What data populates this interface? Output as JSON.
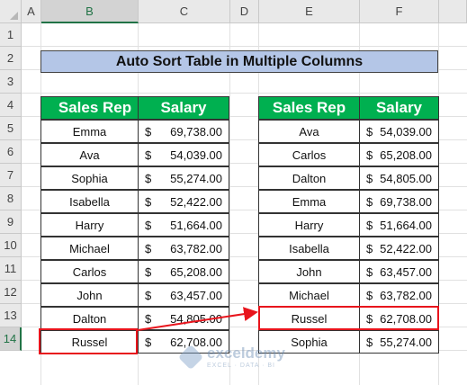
{
  "columns": [
    "A",
    "B",
    "C",
    "D",
    "E",
    "F"
  ],
  "rows": [
    "1",
    "2",
    "3",
    "4",
    "5",
    "6",
    "7",
    "8",
    "9",
    "10",
    "11",
    "12",
    "13",
    "14"
  ],
  "title": "Auto Sort Table in Multiple Columns",
  "left_table": {
    "header_name": "Sales Rep",
    "header_salary": "Salary",
    "rows": [
      {
        "name": "Emma",
        "cur": "$",
        "salary": "69,738.00"
      },
      {
        "name": "Ava",
        "cur": "$",
        "salary": "54,039.00"
      },
      {
        "name": "Sophia",
        "cur": "$",
        "salary": "55,274.00"
      },
      {
        "name": "Isabella",
        "cur": "$",
        "salary": "52,422.00"
      },
      {
        "name": "Harry",
        "cur": "$",
        "salary": "51,664.00"
      },
      {
        "name": "Michael",
        "cur": "$",
        "salary": "63,782.00"
      },
      {
        "name": "Carlos",
        "cur": "$",
        "salary": "65,208.00"
      },
      {
        "name": "John",
        "cur": "$",
        "salary": "63,457.00"
      },
      {
        "name": "Dalton",
        "cur": "$",
        "salary": "54,805.00"
      },
      {
        "name": "Russel",
        "cur": "$",
        "salary": "62,708.00"
      }
    ]
  },
  "right_table": {
    "header_name": "Sales Rep",
    "header_salary": "Salary",
    "rows": [
      {
        "name": "Ava",
        "cur": "$",
        "salary": "54,039.00"
      },
      {
        "name": "Carlos",
        "cur": "$",
        "salary": "65,208.00"
      },
      {
        "name": "Dalton",
        "cur": "$",
        "salary": "54,805.00"
      },
      {
        "name": "Emma",
        "cur": "$",
        "salary": "69,738.00"
      },
      {
        "name": "Harry",
        "cur": "$",
        "salary": "51,664.00"
      },
      {
        "name": "Isabella",
        "cur": "$",
        "salary": "52,422.00"
      },
      {
        "name": "John",
        "cur": "$",
        "salary": "63,457.00"
      },
      {
        "name": "Michael",
        "cur": "$",
        "salary": "63,782.00"
      },
      {
        "name": "Russel",
        "cur": "$",
        "salary": "62,708.00"
      },
      {
        "name": "Sophia",
        "cur": "$",
        "salary": "55,274.00"
      }
    ]
  },
  "watermark": {
    "brand": "exceldemy",
    "tagline": "EXCEL · DATA · BI"
  },
  "colors": {
    "header_green": "#00b050",
    "title_blue": "#b4c6e7",
    "highlight_red": "#e8141c"
  }
}
